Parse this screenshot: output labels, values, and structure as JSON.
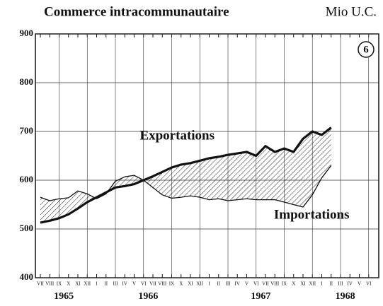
{
  "chart_data": {
    "type": "line",
    "title": "Commerce intracommunautaire",
    "unit": "Mio U.C.",
    "badge": "6",
    "categories": [
      "VII",
      "VIII",
      "IX",
      "X",
      "XI",
      "XII",
      "I",
      "II",
      "III",
      "IV",
      "V",
      "VI",
      "VII",
      "VIII",
      "IX",
      "X",
      "XI",
      "XII",
      "I",
      "II",
      "III",
      "IV",
      "V",
      "VI",
      "VII",
      "VIII",
      "IX",
      "X",
      "XI",
      "XII",
      "I",
      "II",
      "III",
      "IV",
      "V",
      "VI"
    ],
    "years": [
      "1965",
      "1966",
      "1967",
      "1968"
    ],
    "series": [
      {
        "name": "Exportations",
        "color": "#111111",
        "values": [
          513,
          517,
          522,
          530,
          542,
          555,
          565,
          575,
          585,
          588,
          592,
          600,
          608,
          617,
          626,
          632,
          635,
          640,
          645,
          648,
          652,
          655,
          658,
          650,
          670,
          658,
          665,
          658,
          685,
          700,
          693,
          708,
          null,
          null,
          null,
          null
        ]
      },
      {
        "name": "Importations",
        "color": "#111111",
        "values": [
          565,
          558,
          562,
          564,
          578,
          572,
          562,
          572,
          598,
          607,
          610,
          600,
          585,
          570,
          563,
          565,
          568,
          565,
          560,
          562,
          558,
          560,
          562,
          560,
          560,
          560,
          555,
          550,
          545,
          570,
          605,
          630,
          null,
          null,
          null,
          null
        ]
      }
    ],
    "ylim": [
      400,
      900
    ],
    "yticks": [
      400,
      500,
      600,
      700,
      800,
      900
    ],
    "grid": true
  }
}
